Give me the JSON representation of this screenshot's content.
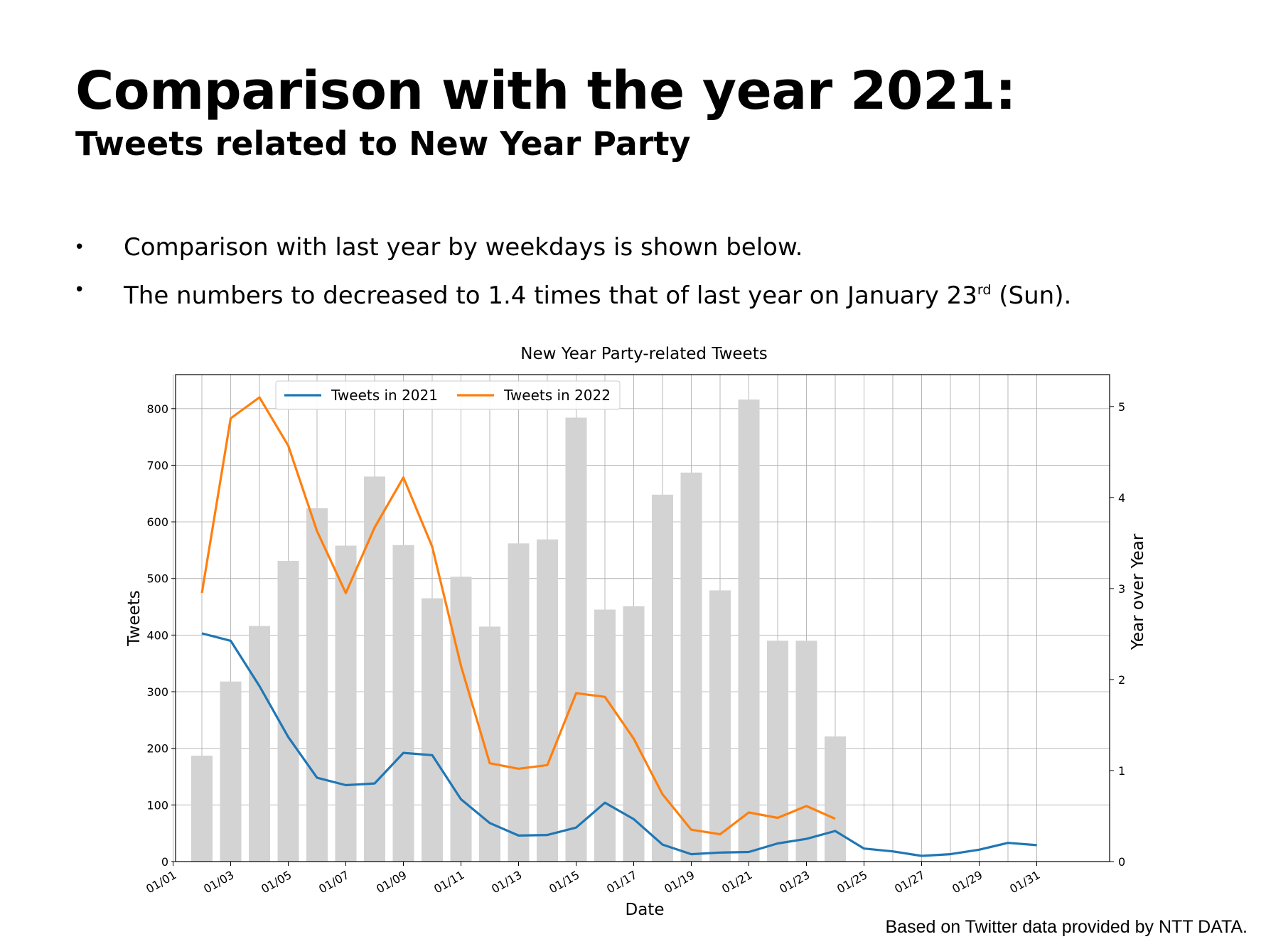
{
  "header": {
    "title": "Comparison with the year 2021:",
    "subtitle": "Tweets related to New Year Party"
  },
  "bullets": [
    {
      "marker": "•",
      "text": "Comparison with last year by weekdays is shown below."
    },
    {
      "marker": "•",
      "text_before": "The numbers to decreased to 1.4 times that of last year on January 23",
      "superscript": "rd",
      "text_after": " (Sun)."
    }
  ],
  "footnote": "Based on Twitter data provided by NTT DATA.",
  "chart_data": {
    "type": "bar",
    "title": "New Year Party-related Tweets",
    "xlabel": "Date",
    "ylabel": "Tweets",
    "y2label": "Year over Year",
    "ylim": [
      0,
      860
    ],
    "y2lim": [
      0,
      5.35
    ],
    "yticks": [
      0,
      100,
      200,
      300,
      400,
      500,
      600,
      700,
      800
    ],
    "y2ticks": [
      0,
      1,
      2,
      3,
      4,
      5
    ],
    "grid": true,
    "legend_position": "top-left",
    "colors": {
      "bars": "#d3d3d3",
      "tweets_2021": "#1f77b4",
      "tweets_2022": "#ff7f0e",
      "grid": "#b0b0b0"
    },
    "x": [
      "01/01",
      "01/02",
      "01/03",
      "01/04",
      "01/05",
      "01/06",
      "01/07",
      "01/08",
      "01/09",
      "01/10",
      "01/11",
      "01/12",
      "01/13",
      "01/14",
      "01/15",
      "01/16",
      "01/17",
      "01/18",
      "01/19",
      "01/20",
      "01/21",
      "01/22",
      "01/23",
      "01/24",
      "01/25",
      "01/26",
      "01/27",
      "01/28",
      "01/29",
      "01/30",
      "01/31"
    ],
    "xtick_labels": [
      "01/01",
      "01/03",
      "01/05",
      "01/07",
      "01/09",
      "01/11",
      "01/13",
      "01/15",
      "01/17",
      "01/19",
      "01/21",
      "01/23",
      "01/25",
      "01/27",
      "01/29",
      "01/31"
    ],
    "bars": {
      "axis": "y",
      "x": [
        "01/02",
        "01/03",
        "01/04",
        "01/05",
        "01/06",
        "01/07",
        "01/08",
        "01/09",
        "01/10",
        "01/11",
        "01/12",
        "01/13",
        "01/14",
        "01/15",
        "01/16",
        "01/17",
        "01/18",
        "01/19",
        "01/20",
        "01/21",
        "01/22",
        "01/23",
        "01/24"
      ],
      "values": [
        187,
        318,
        416,
        531,
        624,
        558,
        680,
        559,
        465,
        503,
        415,
        562,
        569,
        784,
        445,
        451,
        648,
        687,
        479,
        816,
        390,
        390,
        221
      ]
    },
    "series": [
      {
        "name": "Tweets in 2021",
        "axis": "y",
        "x": [
          "01/02",
          "01/03",
          "01/04",
          "01/05",
          "01/06",
          "01/07",
          "01/08",
          "01/09",
          "01/10",
          "01/11",
          "01/12",
          "01/13",
          "01/14",
          "01/15",
          "01/16",
          "01/17",
          "01/18",
          "01/19",
          "01/20",
          "01/21",
          "01/22",
          "01/23",
          "01/24",
          "01/25",
          "01/26",
          "01/27",
          "01/28",
          "01/29",
          "01/30",
          "01/31"
        ],
        "values": [
          403,
          390,
          310,
          220,
          148,
          135,
          138,
          192,
          188,
          110,
          68,
          46,
          47,
          60,
          104,
          75,
          30,
          13,
          16,
          17,
          32,
          40,
          54,
          23,
          18,
          10,
          13,
          21,
          33,
          29
        ]
      },
      {
        "name": "Tweets in 2022",
        "axis": "y2",
        "x": [
          "01/02",
          "01/03",
          "01/04",
          "01/05",
          "01/06",
          "01/07",
          "01/08",
          "01/09",
          "01/10",
          "01/11",
          "01/12",
          "01/13",
          "01/14",
          "01/15",
          "01/16",
          "01/17",
          "01/18",
          "01/19",
          "01/20",
          "01/21",
          "01/22",
          "01/23",
          "01/24"
        ],
        "values": [
          2.95,
          4.87,
          5.1,
          4.57,
          3.63,
          2.95,
          3.67,
          4.22,
          3.46,
          2.15,
          1.08,
          1.02,
          1.06,
          1.85,
          1.81,
          1.35,
          0.74,
          0.35,
          0.3,
          0.54,
          0.48,
          0.61,
          0.47
        ]
      }
    ]
  }
}
